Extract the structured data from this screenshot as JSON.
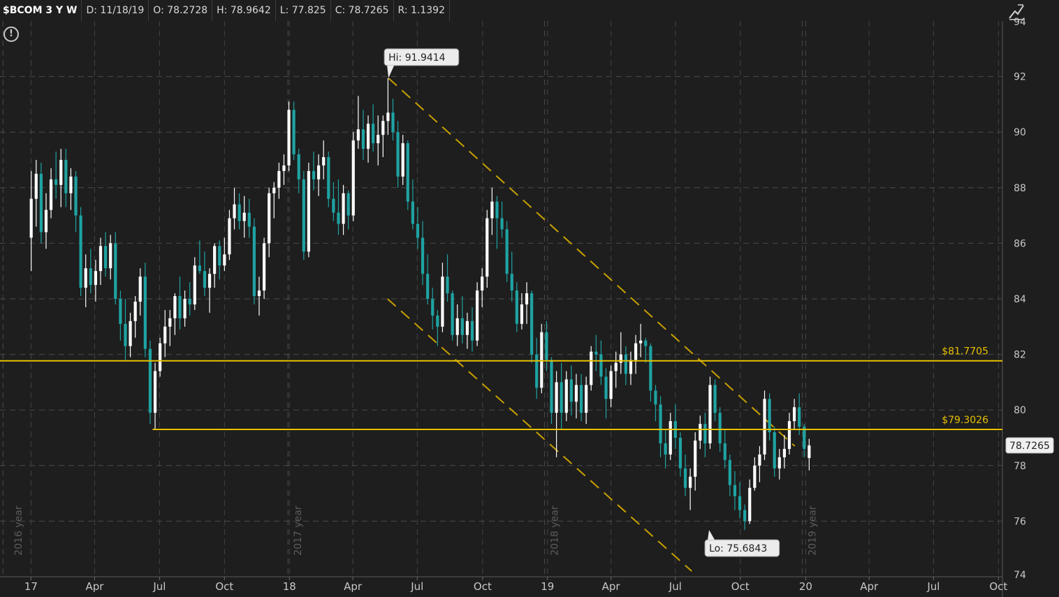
{
  "header": {
    "symbol": "$BCOM 3 Y W",
    "date": "D: 11/18/19",
    "open": "O: 78.2728",
    "high": "H: 78.9642",
    "low": "L: 77.825",
    "close": "C: 78.7265",
    "range": "R: 1.1392"
  },
  "icons": {
    "alert": "alert-circle-icon",
    "drawing": "drawing-tool-icon"
  },
  "colors": {
    "background": "#1e1e1e",
    "grid": "#4a4a4a",
    "up_candle": "#ffffff",
    "down_candle": "#1fa3a3",
    "support_line": "#e8c000",
    "channel": "#c8a000",
    "axis_text": "#c8c8c8"
  },
  "chart_data": {
    "type": "candlestick",
    "yaxis": {
      "min": 74,
      "max": 94,
      "ticks": [
        74,
        76,
        78,
        80,
        82,
        84,
        86,
        88,
        90,
        92,
        94
      ]
    },
    "xaxis": {
      "ticks": [
        {
          "label": "17",
          "x": 0.45
        },
        {
          "label": "Apr",
          "x": 13.3
        },
        {
          "label": "Jul",
          "x": 26.4
        },
        {
          "label": "Oct",
          "x": 39.5
        },
        {
          "label": "18",
          "x": 52.6
        },
        {
          "label": "Apr",
          "x": 65.4
        },
        {
          "label": "Jul",
          "x": 78.4
        },
        {
          "label": "Oct",
          "x": 91.6
        },
        {
          "label": "19",
          "x": 104.7
        },
        {
          "label": "Apr",
          "x": 117.5
        },
        {
          "label": "Jul",
          "x": 130.5
        },
        {
          "label": "Oct",
          "x": 143.6
        },
        {
          "label": "20",
          "x": 156.8
        },
        {
          "label": "Apr",
          "x": 169.6
        },
        {
          "label": "Jul",
          "x": 182.6
        },
        {
          "label": "Oct",
          "x": 195.7
        }
      ],
      "year_markers": [
        {
          "label": "2016 year",
          "x": -5.2
        },
        {
          "label": "2017 year",
          "x": 52.3
        },
        {
          "label": "2018 year",
          "x": 104.1
        },
        {
          "label": "2019 year",
          "x": 156.1
        }
      ],
      "min": -5.8,
      "max": 196.5
    },
    "horizontal_lines": [
      {
        "value": 81.7705,
        "label": "$81.7705",
        "x_start": -5.8
      },
      {
        "value": 79.3026,
        "label": "$79.3026",
        "x_start": 25.0
      }
    ],
    "channel_lines": [
      {
        "x1": 72.6,
        "y1": 91.9414,
        "x2": 154.6,
        "y2": 78.7
      },
      {
        "x1": 72.4,
        "y1": 84.0,
        "x2": 133.8,
        "y2": 74.2
      }
    ],
    "annotations": [
      {
        "label": "Hi: 91.9414",
        "x": 72.6,
        "y": 91.9414,
        "position": "above"
      },
      {
        "label": "Lo: 75.6843",
        "x": 137.3,
        "y": 75.6843,
        "position": "below"
      }
    ],
    "last_price": {
      "value": 78.7265,
      "label": "78.7265"
    },
    "candles": [
      [
        86.2,
        88.6,
        85.0,
        87.6
      ],
      [
        87.6,
        89.0,
        86.6,
        88.5
      ],
      [
        88.5,
        88.9,
        86.0,
        86.4
      ],
      [
        86.4,
        87.8,
        85.8,
        87.2
      ],
      [
        87.2,
        88.7,
        86.9,
        88.3
      ],
      [
        88.3,
        89.3,
        87.6,
        88.1
      ],
      [
        88.1,
        89.4,
        87.3,
        89.0
      ],
      [
        89.0,
        89.4,
        87.3,
        87.8
      ],
      [
        87.8,
        88.7,
        87.2,
        88.4
      ],
      [
        88.4,
        88.6,
        86.4,
        87.0
      ],
      [
        87.0,
        87.3,
        84.1,
        84.4
      ],
      [
        84.4,
        85.6,
        83.7,
        85.1
      ],
      [
        85.1,
        85.8,
        84.2,
        84.5
      ],
      [
        84.5,
        85.4,
        83.9,
        85.0
      ],
      [
        85.0,
        86.2,
        84.5,
        85.9
      ],
      [
        85.9,
        86.4,
        84.8,
        85.1
      ],
      [
        85.1,
        86.3,
        84.7,
        86.0
      ],
      [
        86.0,
        86.4,
        83.8,
        84.0
      ],
      [
        84.0,
        84.3,
        82.5,
        83.1
      ],
      [
        83.1,
        84.0,
        81.8,
        82.3
      ],
      [
        82.3,
        83.5,
        81.9,
        83.2
      ],
      [
        83.2,
        84.1,
        82.6,
        83.9
      ],
      [
        83.9,
        85.1,
        83.4,
        84.8
      ],
      [
        84.8,
        85.3,
        81.9,
        82.2
      ],
      [
        82.2,
        82.5,
        79.5,
        79.9
      ],
      [
        79.9,
        81.7,
        79.3,
        81.4
      ],
      [
        81.4,
        82.6,
        81.2,
        82.4
      ],
      [
        82.4,
        83.6,
        81.9,
        83.0
      ],
      [
        83.0,
        83.6,
        82.3,
        83.3
      ],
      [
        83.3,
        84.2,
        82.7,
        84.1
      ],
      [
        84.1,
        84.8,
        82.9,
        83.3
      ],
      [
        83.3,
        84.3,
        83.0,
        84.0
      ],
      [
        84.0,
        84.6,
        83.4,
        83.8
      ],
      [
        83.8,
        85.5,
        83.6,
        85.2
      ],
      [
        85.2,
        86.1,
        84.9,
        85.0
      ],
      [
        85.0,
        85.7,
        84.1,
        84.4
      ],
      [
        84.4,
        85.1,
        83.5,
        84.9
      ],
      [
        84.9,
        86.0,
        84.4,
        85.9
      ],
      [
        85.9,
        86.1,
        84.7,
        85.2
      ],
      [
        85.2,
        86.2,
        85.0,
        85.6
      ],
      [
        85.6,
        87.2,
        85.4,
        86.9
      ],
      [
        86.9,
        88.0,
        86.5,
        87.4
      ],
      [
        87.4,
        87.8,
        86.5,
        86.8
      ],
      [
        86.8,
        87.7,
        86.2,
        87.1
      ],
      [
        87.1,
        87.6,
        86.2,
        86.6
      ],
      [
        86.6,
        86.9,
        83.8,
        84.1
      ],
      [
        84.1,
        84.8,
        83.4,
        84.3
      ],
      [
        84.3,
        86.2,
        84.0,
        86.0
      ],
      [
        86.0,
        88.0,
        85.5,
        87.8
      ],
      [
        87.8,
        88.2,
        86.9,
        88.0
      ],
      [
        88.0,
        88.9,
        87.6,
        88.6
      ],
      [
        88.6,
        89.2,
        88.1,
        88.8
      ],
      [
        88.8,
        91.1,
        88.6,
        90.8
      ],
      [
        90.8,
        91.1,
        89.0,
        89.2
      ],
      [
        89.2,
        89.4,
        87.8,
        88.3
      ],
      [
        88.3,
        88.6,
        85.4,
        85.7
      ],
      [
        85.7,
        88.9,
        85.5,
        88.6
      ],
      [
        88.6,
        89.3,
        87.9,
        88.3
      ],
      [
        88.3,
        89.2,
        87.7,
        88.8
      ],
      [
        88.8,
        89.7,
        88.3,
        89.1
      ],
      [
        89.1,
        89.3,
        87.3,
        87.6
      ],
      [
        87.6,
        88.2,
        86.8,
        87.1
      ],
      [
        87.1,
        88.3,
        86.3,
        86.7
      ],
      [
        86.7,
        88.1,
        86.3,
        87.8
      ],
      [
        87.8,
        87.9,
        86.5,
        87.0
      ],
      [
        87.0,
        90.0,
        86.8,
        89.7
      ],
      [
        89.7,
        91.3,
        89.4,
        90.1
      ],
      [
        90.1,
        90.8,
        89.0,
        89.4
      ],
      [
        89.4,
        90.6,
        88.9,
        90.3
      ],
      [
        90.3,
        91.0,
        89.3,
        89.6
      ],
      [
        89.6,
        90.6,
        88.8,
        89.9
      ],
      [
        89.9,
        90.6,
        89.1,
        90.4
      ],
      [
        90.4,
        91.9414,
        89.9,
        90.7
      ],
      [
        90.7,
        91.2,
        89.7,
        90.0
      ],
      [
        90.0,
        90.4,
        88.0,
        88.4
      ],
      [
        88.4,
        89.9,
        88.1,
        89.6
      ],
      [
        89.6,
        89.7,
        87.2,
        87.5
      ],
      [
        87.5,
        88.3,
        86.5,
        86.7
      ],
      [
        86.7,
        87.3,
        85.8,
        86.2
      ],
      [
        86.2,
        86.8,
        84.5,
        84.9
      ],
      [
        84.9,
        85.6,
        83.8,
        84.0
      ],
      [
        84.0,
        84.4,
        82.9,
        83.4
      ],
      [
        83.4,
        83.6,
        82.3,
        83.0
      ],
      [
        83.0,
        85.3,
        82.8,
        84.8
      ],
      [
        84.8,
        85.6,
        83.9,
        84.2
      ],
      [
        84.2,
        84.3,
        82.5,
        82.7
      ],
      [
        82.7,
        83.8,
        82.3,
        83.3
      ],
      [
        83.3,
        84.1,
        82.4,
        82.7
      ],
      [
        82.7,
        83.5,
        82.2,
        83.2
      ],
      [
        83.2,
        83.7,
        82.1,
        82.5
      ],
      [
        82.5,
        84.6,
        82.3,
        84.3
      ],
      [
        84.3,
        85.1,
        83.7,
        84.8
      ],
      [
        84.8,
        87.2,
        84.4,
        86.9
      ],
      [
        86.9,
        88.0,
        86.3,
        87.5
      ],
      [
        87.5,
        87.7,
        85.8,
        86.9
      ],
      [
        86.9,
        87.5,
        86.2,
        86.5
      ],
      [
        86.5,
        86.8,
        84.6,
        84.9
      ],
      [
        84.9,
        85.7,
        83.9,
        84.3
      ],
      [
        84.3,
        84.6,
        82.8,
        83.1
      ],
      [
        83.1,
        84.2,
        82.9,
        83.8
      ],
      [
        83.8,
        84.6,
        83.1,
        84.2
      ],
      [
        84.2,
        84.3,
        81.7,
        82.0
      ],
      [
        82.0,
        82.6,
        80.4,
        80.8
      ],
      [
        80.8,
        83.1,
        80.6,
        82.8
      ],
      [
        82.8,
        83.2,
        81.4,
        81.8
      ],
      [
        81.8,
        81.9,
        79.5,
        79.9
      ],
      [
        79.9,
        81.4,
        78.3,
        81.0
      ],
      [
        81.0,
        81.7,
        79.3,
        79.9
      ],
      [
        79.9,
        81.4,
        79.6,
        81.1
      ],
      [
        81.1,
        81.6,
        79.8,
        80.3
      ],
      [
        80.3,
        81.3,
        79.7,
        80.9
      ],
      [
        80.9,
        81.3,
        79.6,
        79.9
      ],
      [
        79.9,
        81.2,
        79.5,
        80.9
      ],
      [
        80.9,
        82.3,
        80.7,
        82.1
      ],
      [
        82.1,
        82.7,
        81.4,
        82.0
      ],
      [
        82.0,
        82.5,
        80.9,
        81.2
      ],
      [
        81.2,
        81.5,
        79.7,
        80.4
      ],
      [
        80.4,
        81.6,
        80.1,
        81.4
      ],
      [
        81.4,
        82.1,
        80.8,
        81.7
      ],
      [
        81.7,
        82.8,
        81.3,
        82.0
      ],
      [
        82.0,
        82.3,
        80.9,
        81.3
      ],
      [
        81.3,
        82.1,
        80.9,
        81.8
      ],
      [
        81.8,
        82.7,
        81.3,
        82.4
      ],
      [
        82.4,
        83.1,
        81.9,
        82.5
      ],
      [
        82.5,
        82.6,
        81.7,
        82.3
      ],
      [
        82.3,
        82.4,
        80.3,
        80.7
      ],
      [
        80.7,
        80.9,
        79.6,
        80.2
      ],
      [
        80.2,
        80.5,
        78.3,
        78.8
      ],
      [
        78.8,
        79.3,
        77.9,
        78.4
      ],
      [
        78.4,
        79.9,
        78.2,
        79.6
      ],
      [
        79.6,
        80.2,
        78.6,
        79.0
      ],
      [
        79.0,
        79.2,
        77.6,
        77.9
      ],
      [
        77.9,
        78.4,
        76.9,
        77.2
      ],
      [
        77.2,
        77.9,
        76.4,
        77.6
      ],
      [
        77.6,
        79.2,
        77.1,
        78.9
      ],
      [
        78.9,
        79.8,
        78.6,
        79.5
      ],
      [
        79.5,
        79.9,
        78.3,
        78.8
      ],
      [
        78.8,
        81.2,
        78.6,
        80.9
      ],
      [
        80.9,
        81.1,
        79.6,
        79.9
      ],
      [
        79.9,
        80.1,
        78.5,
        78.8
      ],
      [
        78.8,
        79.3,
        77.9,
        78.2
      ],
      [
        78.2,
        78.4,
        76.9,
        77.3
      ],
      [
        77.3,
        77.8,
        76.4,
        76.9
      ],
      [
        76.9,
        77.4,
        76.1,
        76.4
      ],
      [
        76.4,
        76.6,
        75.6843,
        76.0
      ],
      [
        76.0,
        77.5,
        75.9,
        77.2
      ],
      [
        77.2,
        78.3,
        77.1,
        78.0
      ],
      [
        78.0,
        78.7,
        77.4,
        78.4
      ],
      [
        78.4,
        80.7,
        78.2,
        80.4
      ],
      [
        80.4,
        80.6,
        78.9,
        79.2
      ],
      [
        79.2,
        79.4,
        77.6,
        77.9
      ],
      [
        77.9,
        78.6,
        77.5,
        78.3
      ],
      [
        78.3,
        79.1,
        77.9,
        78.6
      ],
      [
        78.6,
        79.9,
        78.4,
        79.6
      ],
      [
        79.6,
        80.4,
        79.3,
        80.1
      ],
      [
        80.1,
        80.6,
        79.1,
        79.4
      ],
      [
        79.4,
        79.5,
        78.3,
        78.6
      ],
      [
        78.2728,
        78.9642,
        77.825,
        78.7265
      ]
    ]
  }
}
